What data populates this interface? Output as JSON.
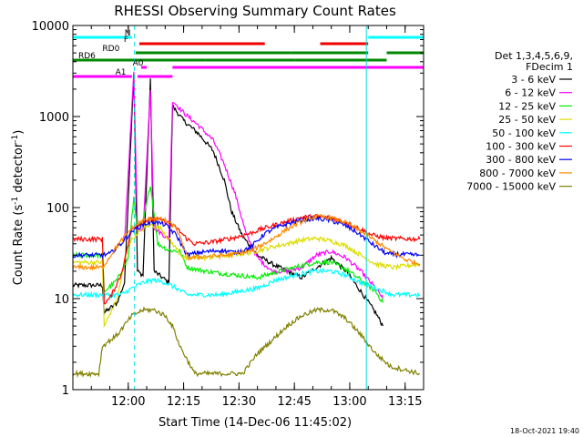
{
  "chart_data": {
    "type": "line",
    "title": "RHESSI Observing Summary Count Rates",
    "xlabel": "Start Time (14-Dec-06 11:45:02)",
    "ylabel": "Count Rate (s⁻¹ detector⁻¹)",
    "ylabel_main": "Count Rate (s",
    "ylabel_sup1": "-1",
    "ylabel_mid": " detector",
    "ylabel_sup2": "-1",
    "ylabel_end": ")",
    "y_scale": "log",
    "ylim": [
      1,
      10000
    ],
    "xlim_minutes": [
      0,
      95
    ],
    "x_ticks": [
      {
        "label": "12:00",
        "minute": 15
      },
      {
        "label": "12:15",
        "minute": 30
      },
      {
        "label": "12:30",
        "minute": 45
      },
      {
        "label": "12:45",
        "minute": 60
      },
      {
        "label": "13:00",
        "minute": 75
      },
      {
        "label": "13:15",
        "minute": 90
      }
    ],
    "y_ticks": [
      {
        "label": "1",
        "value": 1
      },
      {
        "label": "10",
        "value": 10
      },
      {
        "label": "100",
        "value": 100
      },
      {
        "label": "1000",
        "value": 1000
      },
      {
        "label": "10000",
        "value": 10000
      }
    ],
    "legend_header": [
      "Det 1,3,4,5,6,9,",
      "FDecim 1"
    ],
    "legend_position": "right",
    "timestamp": "18-Oct-2021 19:40",
    "series": [
      {
        "name": "3 - 6 keV",
        "color": "#000000",
        "points": [
          [
            0,
            14
          ],
          [
            8,
            14
          ],
          [
            8.5,
            7
          ],
          [
            12,
            9
          ],
          [
            14,
            15
          ],
          [
            16.5,
            3000
          ],
          [
            17.5,
            20
          ],
          [
            19,
            18
          ],
          [
            21,
            2500
          ],
          [
            22,
            20
          ],
          [
            26,
            15
          ],
          [
            27,
            1300
          ],
          [
            30,
            900
          ],
          [
            34,
            650
          ],
          [
            38,
            420
          ],
          [
            41,
            200
          ],
          [
            43,
            90
          ],
          [
            46,
            48
          ],
          [
            50,
            30
          ],
          [
            54,
            24
          ],
          [
            58,
            20
          ],
          [
            62,
            17
          ],
          [
            66,
            22
          ],
          [
            70,
            28
          ],
          [
            74,
            20
          ],
          [
            78,
            12
          ],
          [
            82,
            7
          ],
          [
            84,
            5
          ]
        ]
      },
      {
        "name": "6 - 12 keV",
        "color": "#ff00ff",
        "points": [
          [
            14,
            45
          ],
          [
            16.5,
            3000
          ],
          [
            17.5,
            60
          ],
          [
            19,
            55
          ],
          [
            21,
            2000
          ],
          [
            22,
            60
          ],
          [
            26,
            45
          ],
          [
            27,
            1500
          ],
          [
            30,
            1100
          ],
          [
            34,
            800
          ],
          [
            38,
            550
          ],
          [
            41,
            300
          ],
          [
            44,
            140
          ],
          [
            47,
            50
          ],
          [
            50,
            28
          ],
          [
            54,
            20
          ],
          [
            58,
            20
          ],
          [
            62,
            22
          ],
          [
            66,
            30
          ],
          [
            70,
            33
          ],
          [
            74,
            28
          ],
          [
            78,
            20
          ],
          [
            82,
            13
          ],
          [
            84,
            10
          ]
        ]
      },
      {
        "name": "12 - 25 keV",
        "color": "#00ee00",
        "points": [
          [
            0,
            30
          ],
          [
            8,
            30
          ],
          [
            8.5,
            12
          ],
          [
            12,
            16
          ],
          [
            15,
            28
          ],
          [
            16.5,
            130
          ],
          [
            17.5,
            60
          ],
          [
            19,
            70
          ],
          [
            21,
            180
          ],
          [
            23,
            40
          ],
          [
            26,
            34
          ],
          [
            29,
            33
          ],
          [
            31,
            22
          ],
          [
            36,
            20
          ],
          [
            40,
            19
          ],
          [
            45,
            18
          ],
          [
            50,
            17
          ],
          [
            54,
            19
          ],
          [
            58,
            21
          ],
          [
            62,
            23
          ],
          [
            66,
            25
          ],
          [
            70,
            25
          ],
          [
            74,
            21
          ],
          [
            78,
            16
          ],
          [
            82,
            12
          ],
          [
            84,
            9
          ]
        ]
      },
      {
        "name": "25 - 50 keV",
        "color": "#dddd00",
        "points": [
          [
            0,
            25
          ],
          [
            8,
            25
          ],
          [
            8.5,
            5
          ],
          [
            12,
            10
          ],
          [
            15,
            40
          ],
          [
            18,
            55
          ],
          [
            21,
            65
          ],
          [
            24,
            58
          ],
          [
            27,
            40
          ],
          [
            30,
            28
          ],
          [
            36,
            28
          ],
          [
            42,
            30
          ],
          [
            48,
            32
          ],
          [
            54,
            37
          ],
          [
            58,
            40
          ],
          [
            62,
            44
          ],
          [
            66,
            46
          ],
          [
            70,
            43
          ],
          [
            74,
            38
          ],
          [
            78,
            30
          ],
          [
            82,
            24
          ],
          [
            87,
            22
          ],
          [
            94,
            24
          ]
        ]
      },
      {
        "name": "50 - 100 keV",
        "color": "#00ffff",
        "points": [
          [
            0,
            11
          ],
          [
            8,
            11
          ],
          [
            10,
            11
          ],
          [
            13,
            11
          ],
          [
            16,
            13
          ],
          [
            19,
            15
          ],
          [
            22,
            16
          ],
          [
            25,
            15
          ],
          [
            28,
            13
          ],
          [
            31,
            11
          ],
          [
            35,
            11
          ],
          [
            40,
            11
          ],
          [
            45,
            12
          ],
          [
            50,
            13
          ],
          [
            55,
            16
          ],
          [
            60,
            18
          ],
          [
            65,
            20
          ],
          [
            70,
            20
          ],
          [
            74,
            18
          ],
          [
            78,
            15
          ],
          [
            82,
            13
          ],
          [
            87,
            11
          ],
          [
            94,
            11
          ]
        ]
      },
      {
        "name": "100 - 300 keV",
        "color": "#ff0000",
        "points": [
          [
            0,
            45
          ],
          [
            4,
            45
          ],
          [
            8,
            45
          ],
          [
            8.5,
            9
          ],
          [
            10,
            10
          ],
          [
            13,
            18
          ],
          [
            16,
            58
          ],
          [
            19,
            70
          ],
          [
            22,
            75
          ],
          [
            25,
            70
          ],
          [
            28,
            60
          ],
          [
            31,
            45
          ],
          [
            33,
            40
          ],
          [
            38,
            42
          ],
          [
            43,
            46
          ],
          [
            48,
            52
          ],
          [
            51,
            58
          ],
          [
            54,
            63
          ],
          [
            58,
            70
          ],
          [
            62,
            78
          ],
          [
            66,
            80
          ],
          [
            70,
            77
          ],
          [
            74,
            68
          ],
          [
            78,
            58
          ],
          [
            81,
            50
          ],
          [
            85,
            46
          ],
          [
            94,
            45
          ]
        ]
      },
      {
        "name": "300 - 800 keV",
        "color": "#0000ff",
        "points": [
          [
            0,
            30
          ],
          [
            8,
            30
          ],
          [
            10,
            31
          ],
          [
            13,
            40
          ],
          [
            16,
            55
          ],
          [
            19,
            65
          ],
          [
            22,
            70
          ],
          [
            25,
            65
          ],
          [
            28,
            50
          ],
          [
            31,
            30
          ],
          [
            34,
            32
          ],
          [
            40,
            34
          ],
          [
            44,
            32
          ],
          [
            48,
            36
          ],
          [
            52,
            52
          ],
          [
            55,
            60
          ],
          [
            58,
            66
          ],
          [
            62,
            73
          ],
          [
            66,
            76
          ],
          [
            70,
            72
          ],
          [
            74,
            63
          ],
          [
            78,
            50
          ],
          [
            81,
            40
          ],
          [
            85,
            31
          ],
          [
            94,
            30
          ]
        ]
      },
      {
        "name": "800 - 7000 keV",
        "color": "#ff8800",
        "points": [
          [
            0,
            22
          ],
          [
            8,
            22
          ],
          [
            12,
            38
          ],
          [
            16,
            60
          ],
          [
            19,
            72
          ],
          [
            22,
            77
          ],
          [
            25,
            72
          ],
          [
            28,
            60
          ],
          [
            31,
            28
          ],
          [
            35,
            29
          ],
          [
            42,
            30
          ],
          [
            48,
            33
          ],
          [
            54,
            45
          ],
          [
            58,
            58
          ],
          [
            62,
            70
          ],
          [
            66,
            80
          ],
          [
            70,
            77
          ],
          [
            74,
            68
          ],
          [
            78,
            55
          ],
          [
            82,
            43
          ],
          [
            86,
            33
          ],
          [
            90,
            27
          ],
          [
            94,
            24
          ]
        ]
      },
      {
        "name": "7000 - 15000 keV",
        "color": "#808000",
        "points": [
          [
            0,
            1.5
          ],
          [
            7,
            1.5
          ],
          [
            8,
            3
          ],
          [
            12,
            4
          ],
          [
            16,
            6.5
          ],
          [
            19,
            7.5
          ],
          [
            22,
            7.5
          ],
          [
            25,
            6.5
          ],
          [
            27,
            5
          ],
          [
            29,
            3
          ],
          [
            33,
            1.5
          ],
          [
            42,
            1.5
          ],
          [
            46,
            1.5
          ],
          [
            50,
            2.5
          ],
          [
            54,
            3.5
          ],
          [
            58,
            5
          ],
          [
            62,
            6.5
          ],
          [
            66,
            7.5
          ],
          [
            70,
            7.5
          ],
          [
            74,
            6
          ],
          [
            78,
            4
          ],
          [
            82,
            2.5
          ],
          [
            86,
            1.8
          ],
          [
            94,
            1.5
          ]
        ]
      }
    ],
    "attenuator_bars": [
      {
        "label": "N",
        "color": "#00ffff",
        "segments": [
          [
            0,
            16
          ],
          [
            80,
            95
          ]
        ]
      },
      {
        "label": "F",
        "color": "#ee0000",
        "segments": [
          [
            18,
            52
          ],
          [
            67,
            80
          ]
        ]
      },
      {
        "label": "RD0",
        "color": "#008800",
        "segments": [
          [
            17,
            38
          ],
          [
            38,
            59
          ],
          [
            59,
            80
          ],
          [
            85,
            95
          ]
        ]
      },
      {
        "label": "RD6",
        "color": "#008800",
        "segments": [
          [
            0,
            9
          ],
          [
            9,
            36
          ],
          [
            36,
            60
          ],
          [
            60,
            85
          ]
        ]
      },
      {
        "label": "A0",
        "color": "#ff00ff",
        "segments": [
          [
            18.5,
            20
          ],
          [
            27,
            95
          ]
        ]
      },
      {
        "label": "A1",
        "color": "#ff00ff",
        "segments": [
          [
            0,
            16
          ],
          [
            17.5,
            27
          ]
        ]
      }
    ],
    "vertical_markers": [
      {
        "minute": 16.7,
        "style": "dashed",
        "color": "#00dddd"
      },
      {
        "minute": 79.5,
        "style": "solid",
        "color": "#00dddd"
      },
      {
        "minute": 95.2,
        "style": "dashed",
        "color": "#00dddd"
      }
    ]
  }
}
